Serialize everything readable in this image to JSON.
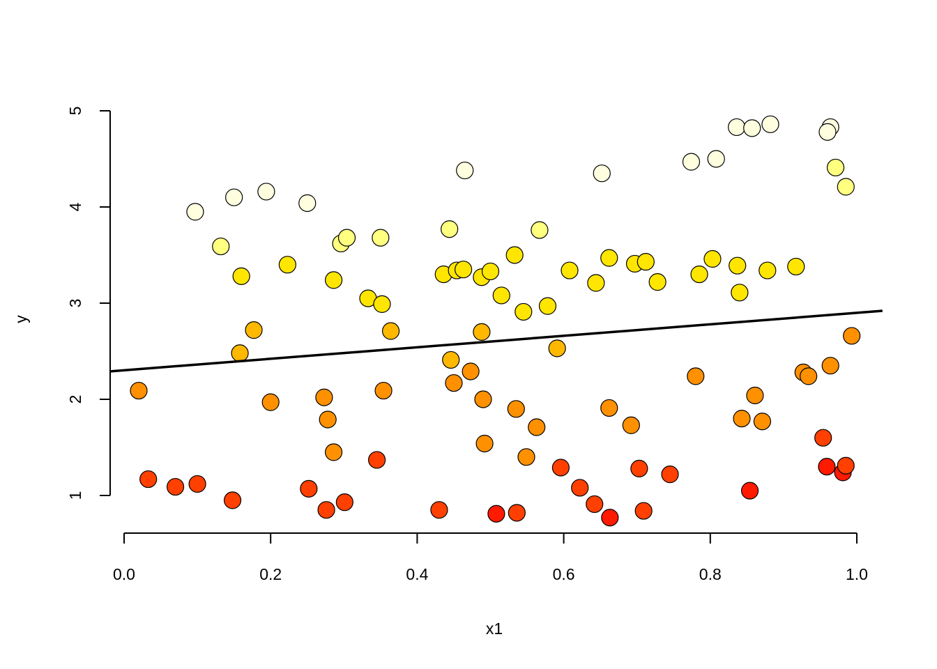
{
  "chart_data": {
    "type": "scatter",
    "title": "",
    "xlabel": "x1",
    "ylabel": "y",
    "xlim": [
      0.0,
      1.0
    ],
    "ylim": [
      1,
      5
    ],
    "x_ticks": [
      "0.0",
      "0.2",
      "0.4",
      "0.6",
      "0.8",
      "1.0"
    ],
    "y_ticks": [
      "1",
      "2",
      "3",
      "4",
      "5"
    ],
    "grid": false,
    "legend": "none",
    "point_colors": {
      "darkred": "#ff1a00",
      "red": "#ff4000",
      "orange": "#ff9000",
      "amber": "#ffb800",
      "yellow": "#ffe600",
      "paleyellow": "#ffff80",
      "cream": "#ffffe0"
    },
    "regression_line": {
      "x": [
        -0.02,
        1.035
      ],
      "y": [
        2.29,
        2.92
      ]
    },
    "points": [
      {
        "x": 0.02,
        "y": 2.09,
        "c": "orange"
      },
      {
        "x": 0.033,
        "y": 1.17,
        "c": "red"
      },
      {
        "x": 0.07,
        "y": 1.09,
        "c": "red"
      },
      {
        "x": 0.1,
        "y": 1.12,
        "c": "red"
      },
      {
        "x": 0.097,
        "y": 3.95,
        "c": "cream"
      },
      {
        "x": 0.132,
        "y": 3.59,
        "c": "paleyellow"
      },
      {
        "x": 0.15,
        "y": 4.1,
        "c": "cream"
      },
      {
        "x": 0.148,
        "y": 0.95,
        "c": "red"
      },
      {
        "x": 0.16,
        "y": 3.28,
        "c": "yellow"
      },
      {
        "x": 0.158,
        "y": 2.48,
        "c": "amber"
      },
      {
        "x": 0.177,
        "y": 2.72,
        "c": "amber"
      },
      {
        "x": 0.194,
        "y": 4.16,
        "c": "cream"
      },
      {
        "x": 0.2,
        "y": 1.97,
        "c": "orange"
      },
      {
        "x": 0.223,
        "y": 3.4,
        "c": "yellow"
      },
      {
        "x": 0.25,
        "y": 4.04,
        "c": "cream"
      },
      {
        "x": 0.252,
        "y": 1.07,
        "c": "red"
      },
      {
        "x": 0.273,
        "y": 2.02,
        "c": "orange"
      },
      {
        "x": 0.276,
        "y": 0.85,
        "c": "red"
      },
      {
        "x": 0.278,
        "y": 1.79,
        "c": "orange"
      },
      {
        "x": 0.286,
        "y": 3.24,
        "c": "yellow"
      },
      {
        "x": 0.286,
        "y": 1.45,
        "c": "orange"
      },
      {
        "x": 0.296,
        "y": 3.62,
        "c": "paleyellow"
      },
      {
        "x": 0.301,
        "y": 0.93,
        "c": "red"
      },
      {
        "x": 0.304,
        "y": 3.68,
        "c": "paleyellow"
      },
      {
        "x": 0.333,
        "y": 3.05,
        "c": "yellow"
      },
      {
        "x": 0.345,
        "y": 1.37,
        "c": "red"
      },
      {
        "x": 0.35,
        "y": 3.68,
        "c": "paleyellow"
      },
      {
        "x": 0.352,
        "y": 2.99,
        "c": "yellow"
      },
      {
        "x": 0.354,
        "y": 2.09,
        "c": "orange"
      },
      {
        "x": 0.364,
        "y": 2.71,
        "c": "amber"
      },
      {
        "x": 0.43,
        "y": 0.85,
        "c": "red"
      },
      {
        "x": 0.436,
        "y": 3.3,
        "c": "yellow"
      },
      {
        "x": 0.444,
        "y": 3.77,
        "c": "paleyellow"
      },
      {
        "x": 0.446,
        "y": 2.41,
        "c": "amber"
      },
      {
        "x": 0.45,
        "y": 2.17,
        "c": "orange"
      },
      {
        "x": 0.454,
        "y": 3.34,
        "c": "yellow"
      },
      {
        "x": 0.463,
        "y": 3.35,
        "c": "yellow"
      },
      {
        "x": 0.465,
        "y": 4.38,
        "c": "cream"
      },
      {
        "x": 0.473,
        "y": 2.29,
        "c": "orange"
      },
      {
        "x": 0.488,
        "y": 3.27,
        "c": "yellow"
      },
      {
        "x": 0.488,
        "y": 2.7,
        "c": "amber"
      },
      {
        "x": 0.49,
        "y": 2.0,
        "c": "orange"
      },
      {
        "x": 0.492,
        "y": 1.54,
        "c": "orange"
      },
      {
        "x": 0.5,
        "y": 3.33,
        "c": "yellow"
      },
      {
        "x": 0.508,
        "y": 0.81,
        "c": "darkred"
      },
      {
        "x": 0.515,
        "y": 3.08,
        "c": "yellow"
      },
      {
        "x": 0.533,
        "y": 3.5,
        "c": "yellow"
      },
      {
        "x": 0.535,
        "y": 1.9,
        "c": "orange"
      },
      {
        "x": 0.536,
        "y": 0.82,
        "c": "red"
      },
      {
        "x": 0.545,
        "y": 2.91,
        "c": "yellow"
      },
      {
        "x": 0.549,
        "y": 1.4,
        "c": "orange"
      },
      {
        "x": 0.563,
        "y": 1.71,
        "c": "orange"
      },
      {
        "x": 0.567,
        "y": 3.76,
        "c": "paleyellow"
      },
      {
        "x": 0.578,
        "y": 2.97,
        "c": "yellow"
      },
      {
        "x": 0.591,
        "y": 2.53,
        "c": "amber"
      },
      {
        "x": 0.596,
        "y": 1.29,
        "c": "red"
      },
      {
        "x": 0.608,
        "y": 3.34,
        "c": "yellow"
      },
      {
        "x": 0.622,
        "y": 1.08,
        "c": "red"
      },
      {
        "x": 0.642,
        "y": 0.91,
        "c": "red"
      },
      {
        "x": 0.644,
        "y": 3.21,
        "c": "yellow"
      },
      {
        "x": 0.652,
        "y": 4.35,
        "c": "cream"
      },
      {
        "x": 0.662,
        "y": 1.91,
        "c": "orange"
      },
      {
        "x": 0.662,
        "y": 3.47,
        "c": "yellow"
      },
      {
        "x": 0.663,
        "y": 0.77,
        "c": "darkred"
      },
      {
        "x": 0.692,
        "y": 1.73,
        "c": "orange"
      },
      {
        "x": 0.697,
        "y": 3.41,
        "c": "yellow"
      },
      {
        "x": 0.703,
        "y": 1.28,
        "c": "red"
      },
      {
        "x": 0.709,
        "y": 0.84,
        "c": "red"
      },
      {
        "x": 0.712,
        "y": 3.43,
        "c": "yellow"
      },
      {
        "x": 0.728,
        "y": 3.22,
        "c": "yellow"
      },
      {
        "x": 0.745,
        "y": 1.22,
        "c": "red"
      },
      {
        "x": 0.774,
        "y": 4.47,
        "c": "cream"
      },
      {
        "x": 0.78,
        "y": 2.24,
        "c": "orange"
      },
      {
        "x": 0.785,
        "y": 3.3,
        "c": "yellow"
      },
      {
        "x": 0.803,
        "y": 3.46,
        "c": "yellow"
      },
      {
        "x": 0.808,
        "y": 4.5,
        "c": "cream"
      },
      {
        "x": 0.836,
        "y": 4.83,
        "c": "cream"
      },
      {
        "x": 0.837,
        "y": 3.39,
        "c": "yellow"
      },
      {
        "x": 0.84,
        "y": 3.11,
        "c": "yellow"
      },
      {
        "x": 0.843,
        "y": 1.8,
        "c": "orange"
      },
      {
        "x": 0.854,
        "y": 1.05,
        "c": "darkred"
      },
      {
        "x": 0.857,
        "y": 4.82,
        "c": "cream"
      },
      {
        "x": 0.861,
        "y": 2.04,
        "c": "orange"
      },
      {
        "x": 0.871,
        "y": 1.77,
        "c": "orange"
      },
      {
        "x": 0.878,
        "y": 3.34,
        "c": "yellow"
      },
      {
        "x": 0.882,
        "y": 4.86,
        "c": "cream"
      },
      {
        "x": 0.917,
        "y": 3.38,
        "c": "yellow"
      },
      {
        "x": 0.927,
        "y": 2.28,
        "c": "orange"
      },
      {
        "x": 0.934,
        "y": 2.24,
        "c": "orange"
      },
      {
        "x": 0.954,
        "y": 1.6,
        "c": "red"
      },
      {
        "x": 0.959,
        "y": 1.3,
        "c": "darkred"
      },
      {
        "x": 0.964,
        "y": 2.35,
        "c": "orange"
      },
      {
        "x": 0.964,
        "y": 4.83,
        "c": "cream"
      },
      {
        "x": 0.96,
        "y": 4.78,
        "c": "cream"
      },
      {
        "x": 0.971,
        "y": 4.41,
        "c": "paleyellow"
      },
      {
        "x": 0.981,
        "y": 1.24,
        "c": "darkred"
      },
      {
        "x": 0.985,
        "y": 1.31,
        "c": "red"
      },
      {
        "x": 0.985,
        "y": 4.21,
        "c": "paleyellow"
      },
      {
        "x": 0.993,
        "y": 2.66,
        "c": "orange"
      }
    ]
  }
}
